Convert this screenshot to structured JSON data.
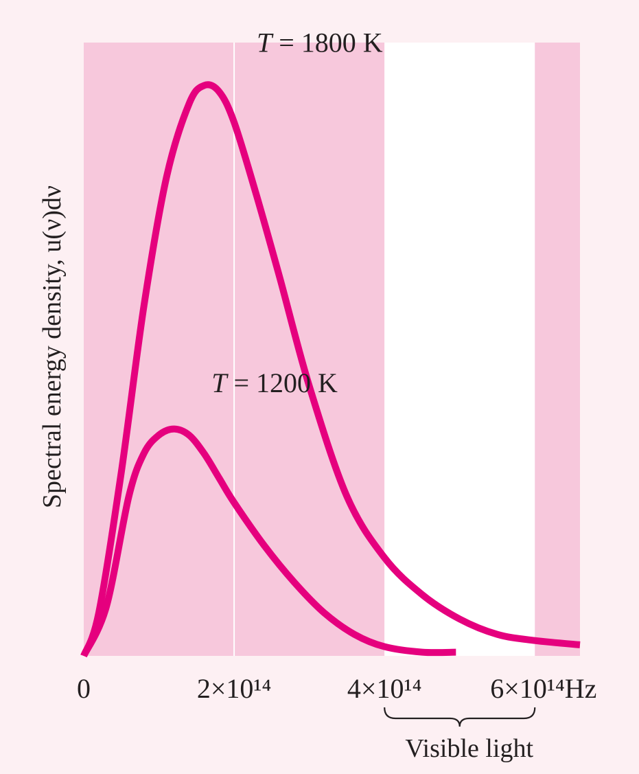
{
  "chart_data": {
    "type": "line",
    "title": "",
    "xlabel": "",
    "ylabel": "Spectral energy density, u(ν)dν",
    "x_unit": "Hz",
    "xlim": [
      0,
      660000000000000.0
    ],
    "ylim": [
      0,
      1
    ],
    "x_ticks": [
      {
        "value": 0,
        "label": "0"
      },
      {
        "value": 200000000000000.0,
        "label": "2×10¹⁴"
      },
      {
        "value": 400000000000000.0,
        "label": "4×10¹⁴"
      },
      {
        "value": 600000000000000.0,
        "label": "6×10¹⁴Hz"
      }
    ],
    "bands": [
      {
        "from": 0,
        "to": 400000000000000.0,
        "color": "#f7c8dc"
      },
      {
        "from": 400000000000000.0,
        "to": 600000000000000.0,
        "color": "#ffffff",
        "label": "Visible light"
      },
      {
        "from": 600000000000000.0,
        "to": 660000000000000.0,
        "color": "#f7c8dc"
      }
    ],
    "gridline_x": [
      200000000000000.0
    ],
    "series": [
      {
        "name": "T = 1800 K",
        "color": "#e5007e",
        "x": [
          0,
          20000000000000.0,
          50000000000000.0,
          80000000000000.0,
          110000000000000.0,
          140000000000000.0,
          160000000000000.0,
          180000000000000.0,
          200000000000000.0,
          230000000000000.0,
          260000000000000.0,
          300000000000000.0,
          350000000000000.0,
          400000000000000.0,
          450000000000000.0,
          500000000000000.0,
          550000000000000.0,
          600000000000000.0,
          660000000000000.0
        ],
        "y": [
          0,
          0.07,
          0.3,
          0.57,
          0.78,
          0.9,
          0.93,
          0.92,
          0.87,
          0.75,
          0.62,
          0.44,
          0.26,
          0.16,
          0.1,
          0.06,
          0.035,
          0.025,
          0.018
        ]
      },
      {
        "name": "T = 1200 K",
        "color": "#e5007e",
        "x": [
          0,
          30000000000000.0,
          60000000000000.0,
          80000000000000.0,
          100000000000000.0,
          120000000000000.0,
          140000000000000.0,
          160000000000000.0,
          180000000000000.0,
          200000000000000.0,
          240000000000000.0,
          280000000000000.0,
          320000000000000.0,
          360000000000000.0,
          400000000000000.0,
          450000000000000.0,
          495000000000000.0
        ],
        "y": [
          0,
          0.08,
          0.26,
          0.33,
          0.36,
          0.37,
          0.36,
          0.33,
          0.29,
          0.25,
          0.18,
          0.12,
          0.07,
          0.035,
          0.015,
          0.006,
          0.006
        ]
      }
    ],
    "curve_labels": [
      {
        "text": "T = 1800 K",
        "x": 230000000000000.0,
        "y": 0.985
      },
      {
        "text": "T = 1200 K",
        "x": 170000000000000.0,
        "y": 0.43
      }
    ],
    "visible_band_label": "Visible light"
  }
}
